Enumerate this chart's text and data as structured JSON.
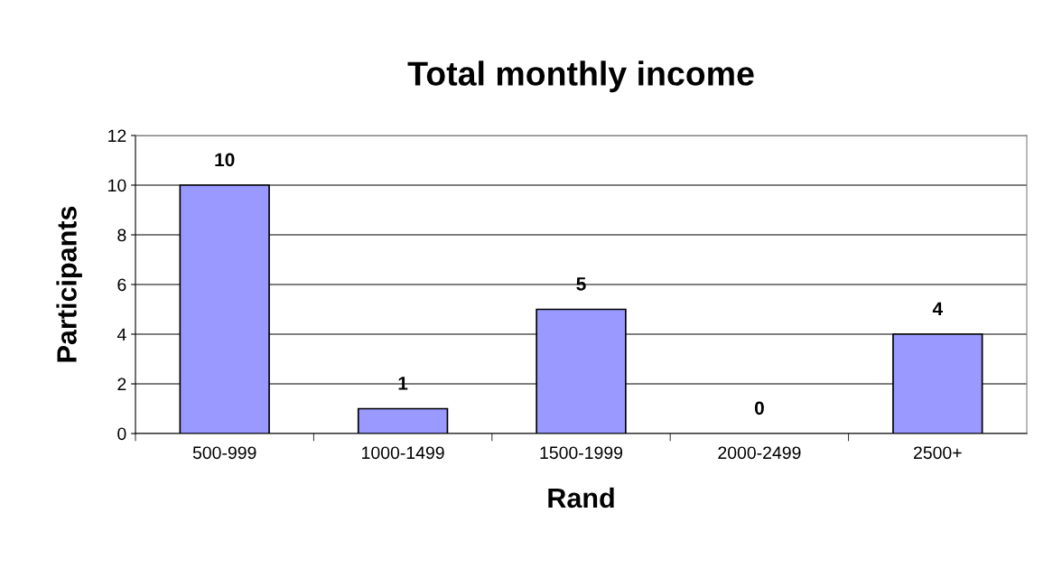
{
  "chart_data": {
    "type": "bar",
    "title": "Total monthly income",
    "xlabel": "Rand",
    "ylabel": "Participants",
    "categories": [
      "500-999",
      "1000-1499",
      "1500-1999",
      "2000-2499",
      "2500+"
    ],
    "values": [
      10,
      1,
      5,
      0,
      4
    ],
    "color": "#9999ff",
    "ylim": [
      0,
      12
    ],
    "yticks": [
      0,
      2,
      4,
      6,
      8,
      10,
      12
    ],
    "grid": "y",
    "data_labels": true,
    "legend": false
  }
}
